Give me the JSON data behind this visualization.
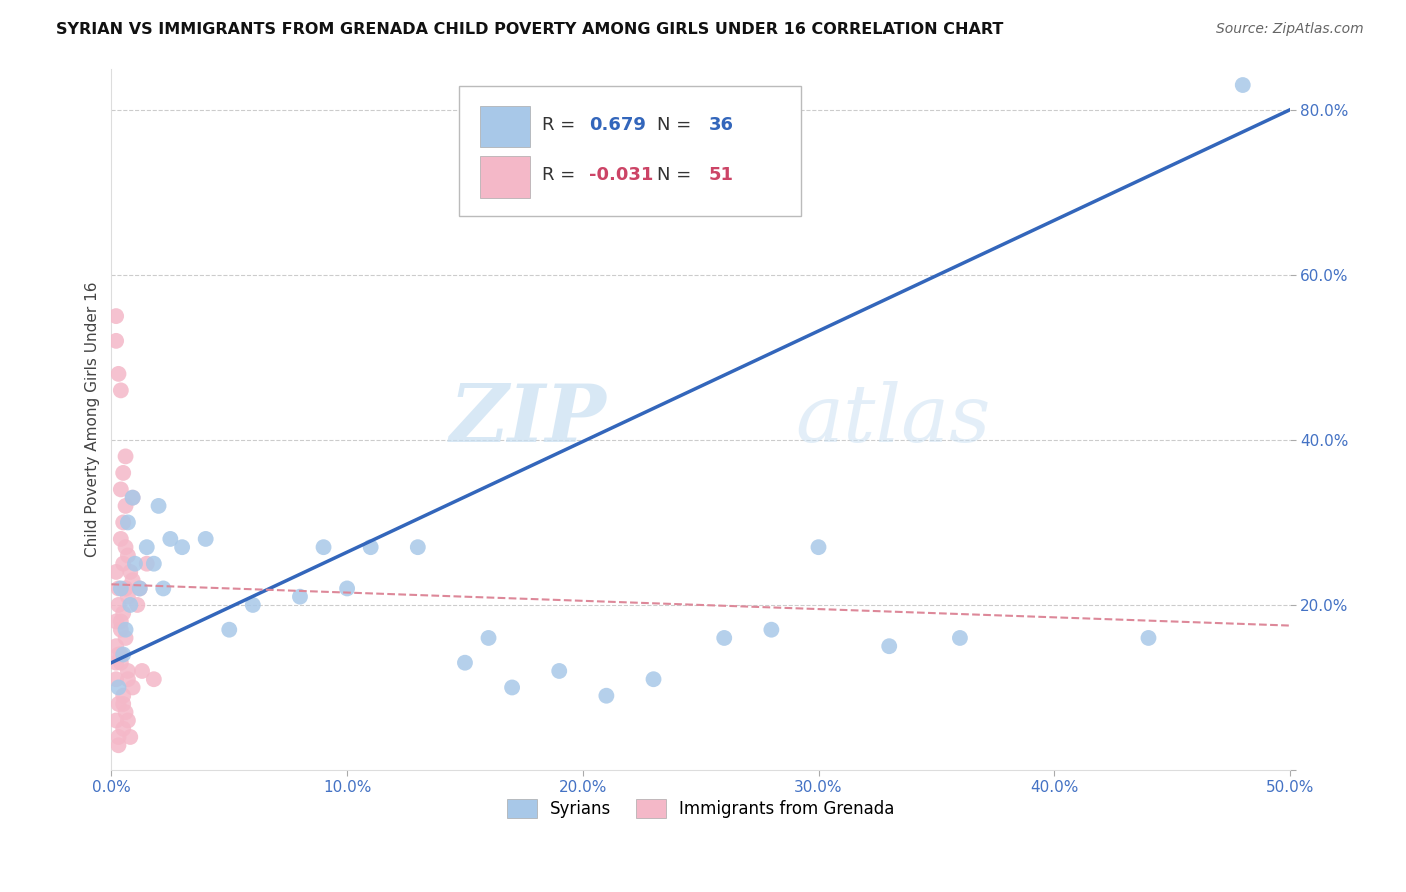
{
  "title": "SYRIAN VS IMMIGRANTS FROM GRENADA CHILD POVERTY AMONG GIRLS UNDER 16 CORRELATION CHART",
  "source": "Source: ZipAtlas.com",
  "ylabel": "Child Poverty Among Girls Under 16",
  "xlim": [
    0.0,
    0.5
  ],
  "ylim": [
    0.0,
    0.85
  ],
  "xticks": [
    0.0,
    0.1,
    0.2,
    0.3,
    0.4,
    0.5
  ],
  "yticks": [
    0.0,
    0.2,
    0.4,
    0.6,
    0.8
  ],
  "ytick_labels": [
    "",
    "20.0%",
    "40.0%",
    "60.0%",
    "80.0%"
  ],
  "xtick_labels": [
    "0.0%",
    "10.0%",
    "20.0%",
    "30.0%",
    "40.0%",
    "50.0%"
  ],
  "background_color": "#ffffff",
  "grid_color": "#cccccc",
  "watermark_zip": "ZIP",
  "watermark_atlas": "atlas",
  "syrian_color": "#a8c8e8",
  "grenada_color": "#f4b8c8",
  "syrian_line_color": "#3366bb",
  "grenada_line_color": "#dd8899",
  "syrian_R": 0.679,
  "syrian_N": 36,
  "grenada_R": -0.031,
  "grenada_N": 51,
  "legend_R_color": "#3366bb",
  "legend_R2_color": "#cc4466",
  "tick_color": "#4472c4",
  "syrian_scatter_x": [
    0.005,
    0.008,
    0.012,
    0.003,
    0.006,
    0.01,
    0.015,
    0.007,
    0.004,
    0.018,
    0.022,
    0.009,
    0.025,
    0.03,
    0.02,
    0.04,
    0.05,
    0.06,
    0.08,
    0.09,
    0.1,
    0.11,
    0.13,
    0.15,
    0.16,
    0.17,
    0.19,
    0.21,
    0.23,
    0.26,
    0.28,
    0.3,
    0.33,
    0.36,
    0.44,
    0.48
  ],
  "syrian_scatter_y": [
    0.14,
    0.2,
    0.22,
    0.1,
    0.17,
    0.25,
    0.27,
    0.3,
    0.22,
    0.25,
    0.22,
    0.33,
    0.28,
    0.27,
    0.32,
    0.28,
    0.17,
    0.2,
    0.21,
    0.27,
    0.22,
    0.27,
    0.27,
    0.13,
    0.16,
    0.1,
    0.12,
    0.09,
    0.11,
    0.16,
    0.17,
    0.27,
    0.15,
    0.16,
    0.16,
    0.83
  ],
  "grenada_scatter_x": [
    0.002,
    0.003,
    0.004,
    0.002,
    0.005,
    0.006,
    0.003,
    0.002,
    0.004,
    0.006,
    0.005,
    0.007,
    0.008,
    0.006,
    0.004,
    0.003,
    0.002,
    0.005,
    0.007,
    0.008,
    0.006,
    0.005,
    0.003,
    0.002,
    0.004,
    0.007,
    0.009,
    0.006,
    0.005,
    0.003,
    0.002,
    0.004,
    0.007,
    0.009,
    0.006,
    0.005,
    0.003,
    0.002,
    0.004,
    0.007,
    0.009,
    0.006,
    0.005,
    0.003,
    0.002,
    0.004,
    0.012,
    0.015,
    0.018,
    0.011,
    0.013
  ],
  "grenada_scatter_y": [
    0.52,
    0.48,
    0.46,
    0.55,
    0.25,
    0.22,
    0.2,
    0.18,
    0.34,
    0.38,
    0.3,
    0.26,
    0.24,
    0.22,
    0.18,
    0.14,
    0.11,
    0.08,
    0.06,
    0.04,
    0.16,
    0.19,
    0.22,
    0.24,
    0.28,
    0.12,
    0.1,
    0.07,
    0.05,
    0.03,
    0.15,
    0.17,
    0.21,
    0.23,
    0.27,
    0.09,
    0.08,
    0.06,
    0.13,
    0.11,
    0.33,
    0.32,
    0.36,
    0.04,
    0.13,
    0.14,
    0.22,
    0.25,
    0.11,
    0.2,
    0.12
  ],
  "syrian_line_x": [
    0.0,
    0.5
  ],
  "syrian_line_y": [
    0.13,
    0.8
  ],
  "grenada_line_x": [
    0.0,
    0.5
  ],
  "grenada_line_y": [
    0.225,
    0.175
  ]
}
